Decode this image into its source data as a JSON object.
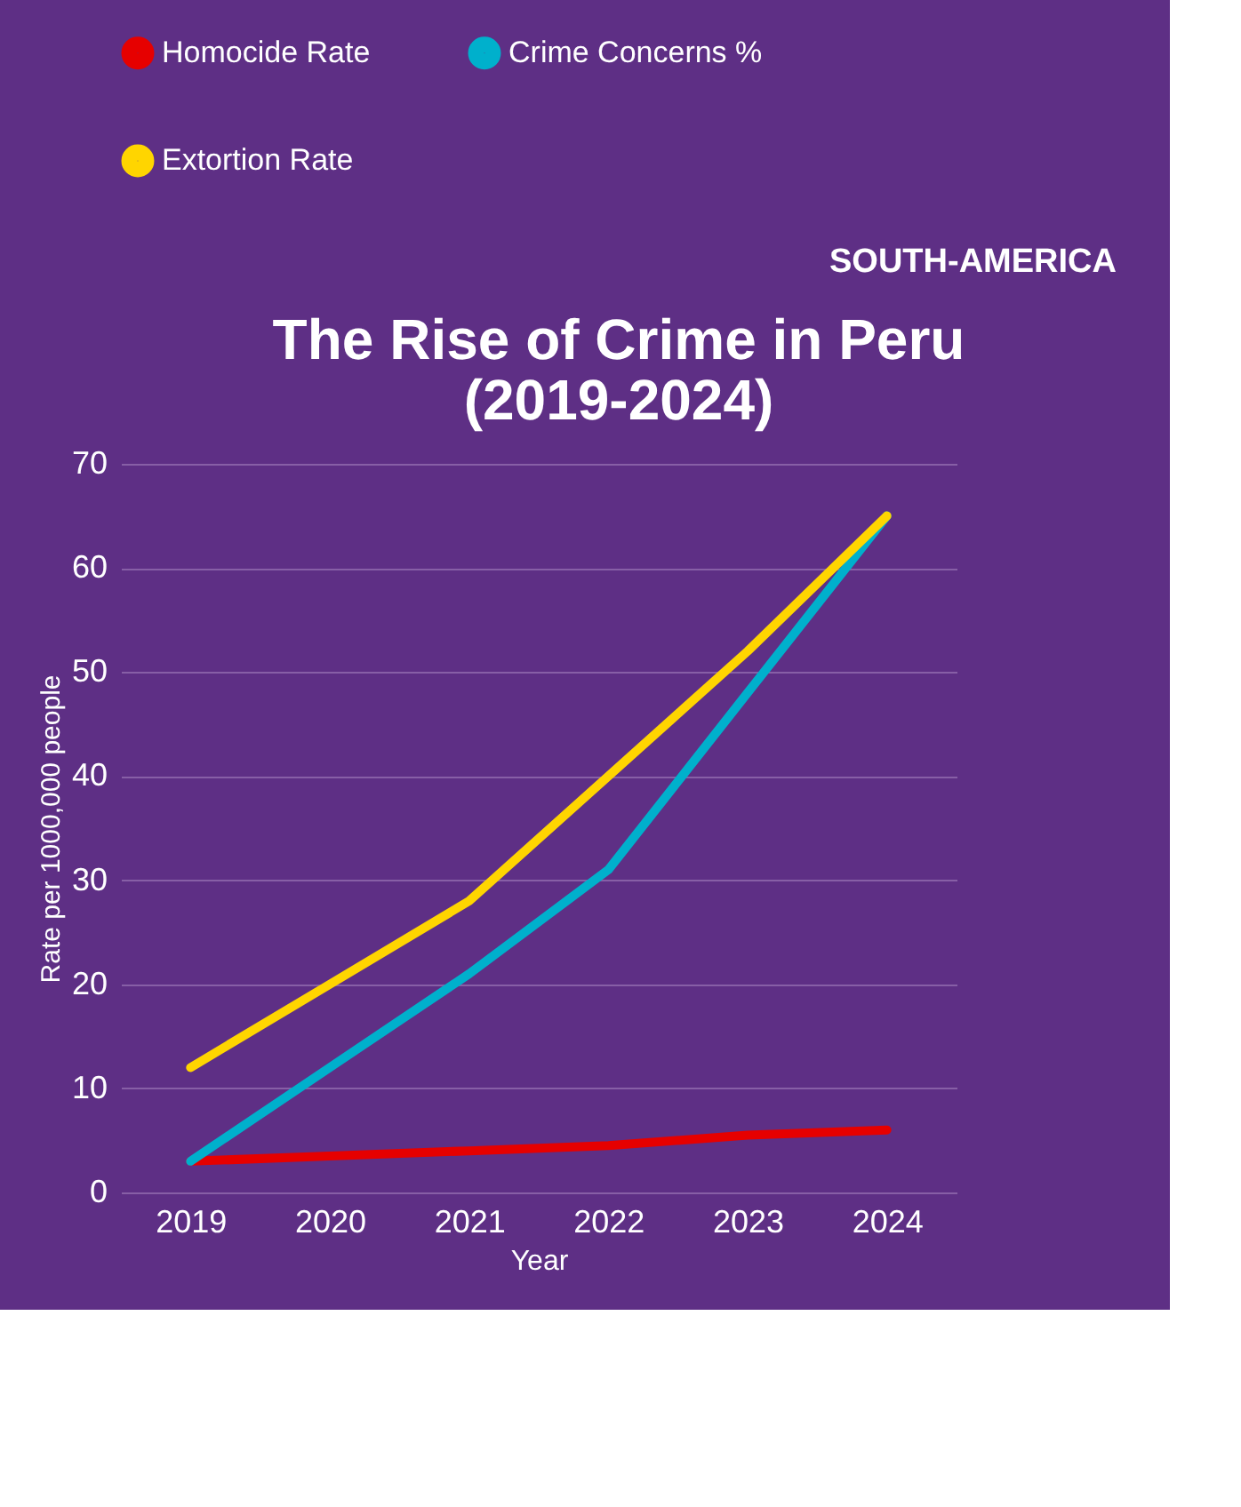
{
  "chart_data": {
    "type": "line",
    "title": [
      "The Rise of Crime in Peru",
      "(2019-2024)"
    ],
    "annotations": [
      "SOUTH-AMERICA"
    ],
    "xlabel": "Year",
    "ylabel": "Rate per 1000,000 people",
    "categories": [
      "2019",
      "2020",
      "2021",
      "2022",
      "2023",
      "2024"
    ],
    "series": [
      {
        "name": "Homocide Rate",
        "color": "#e60000",
        "values": [
          3,
          3.5,
          4,
          4.5,
          5.5,
          6
        ]
      },
      {
        "name": "Crime Concerns %",
        "color": "#00b0cc",
        "values": [
          3,
          12,
          21,
          31,
          48,
          65
        ]
      },
      {
        "name": "Extortion Rate",
        "color": "#ffd500",
        "values": [
          12,
          20,
          28,
          40,
          52,
          65
        ]
      }
    ],
    "ylim": [
      0,
      70
    ],
    "yticks": [
      0,
      10,
      20,
      30,
      40,
      50,
      60,
      70
    ],
    "grid": "y",
    "legend": "top",
    "line_style": "solid",
    "marker": "none"
  }
}
